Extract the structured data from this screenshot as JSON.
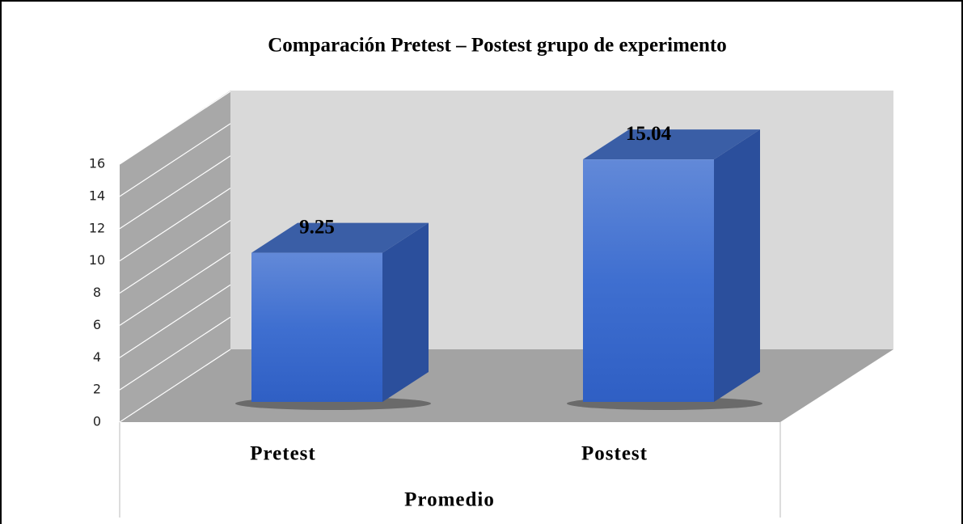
{
  "chart_data": {
    "type": "bar3d",
    "title": "Comparación Pretest – Postest grupo de experimento",
    "categories": [
      "Pretest",
      "Postest"
    ],
    "values": [
      9.25,
      15.04
    ],
    "color": "#3d6fd1",
    "x_label": "Promedio",
    "ylim": [
      0,
      16
    ],
    "yticks": [
      0,
      2,
      4,
      6,
      8,
      10,
      12,
      14,
      16
    ],
    "grid": true
  }
}
